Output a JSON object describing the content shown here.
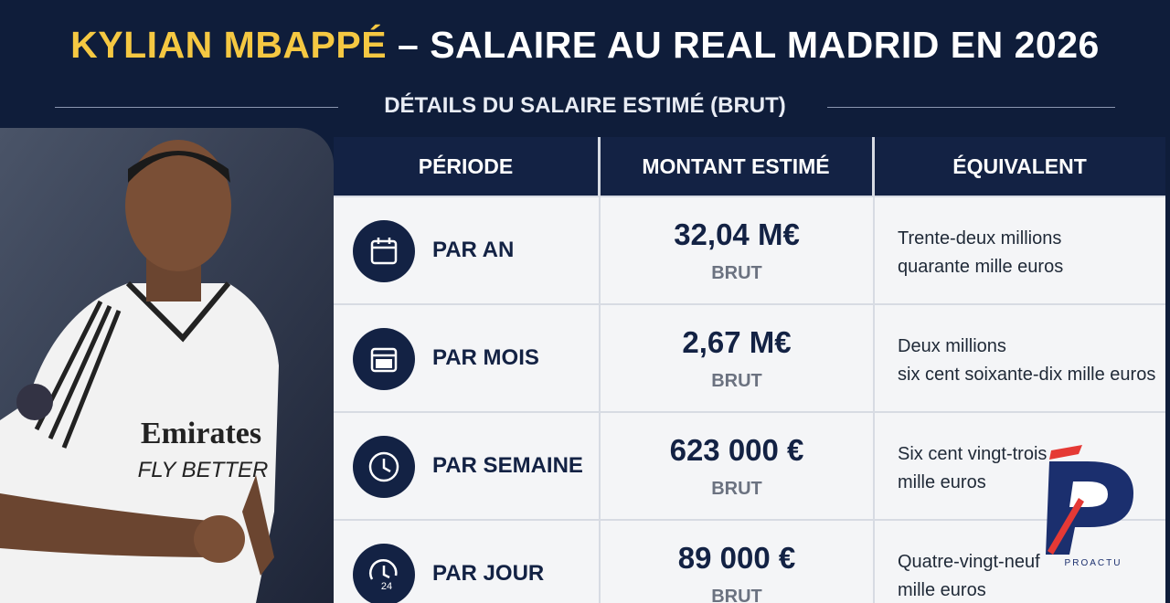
{
  "header": {
    "title_name": "KYLIAN MBAPPÉ",
    "title_rest": "– SALAIRE AU REAL MADRID EN 2026",
    "subtitle": "DÉTAILS DU SALAIRE ESTIMÉ (BRUT)"
  },
  "table": {
    "columns": [
      "PÉRIODE",
      "MONTANT ESTIMÉ",
      "ÉQUIVALENT"
    ],
    "rows": [
      {
        "period": "PAR AN",
        "amount": "32,04 M€",
        "note": "BRUT",
        "equivalent": [
          "Trente-deux millions",
          "quarante mille euros"
        ]
      },
      {
        "period": "PAR MOIS",
        "amount": "2,67 M€",
        "note": "BRUT",
        "equivalent": [
          "Deux millions",
          "six cent soixante-dix mille euros"
        ]
      },
      {
        "period": "PAR SEMAINE",
        "amount": "623 000 €",
        "note": "BRUT",
        "equivalent": [
          "Six cent vingt-trois",
          "mille euros"
        ]
      },
      {
        "period": "PAR JOUR",
        "amount": "89 000 €",
        "note": "BRUT",
        "equivalent": [
          "Quatre-vingt-neuf",
          "mille euros"
        ]
      }
    ]
  },
  "logo": {
    "text": "PROACTU"
  }
}
